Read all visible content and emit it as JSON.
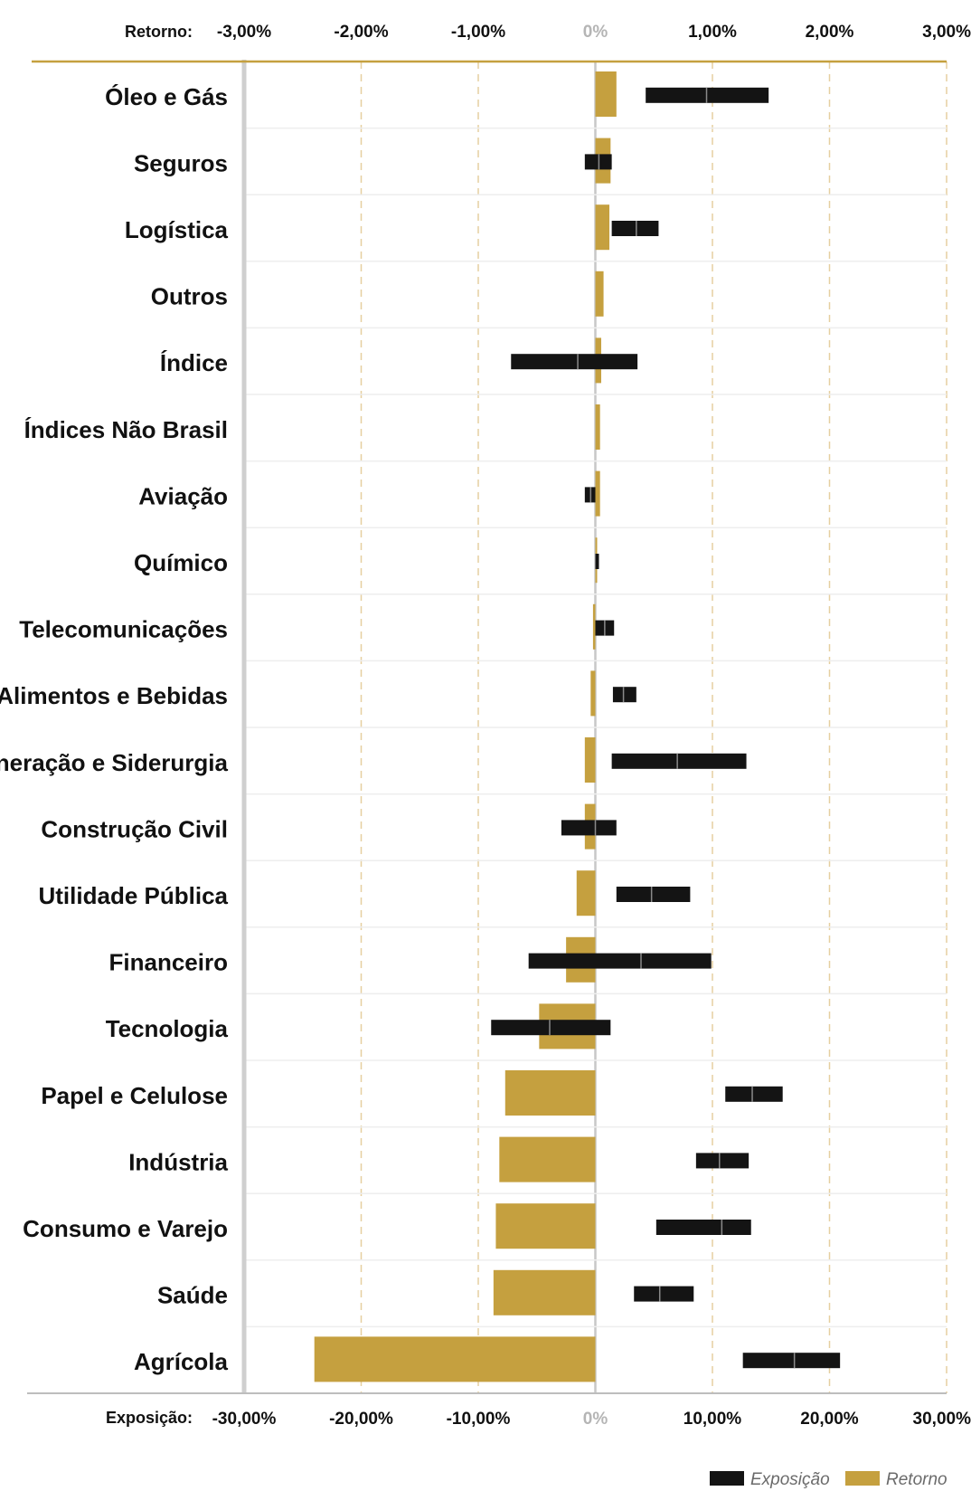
{
  "chart_data": {
    "type": "bar",
    "title": "",
    "categories": [
      "Óleo e Gás",
      "Seguros",
      "Logística",
      "Outros",
      "Índice",
      "Índices Não Brasil",
      "Aviação",
      "Químico",
      "Telecomunicações",
      "Alimentos e Bebidas",
      "Mineração e Siderurgia",
      "Construção Civil",
      "Utilidade Pública",
      "Financeiro",
      "Tecnologia",
      "Papel e Celulose",
      "Indústria",
      "Consumo e Varejo",
      "Saúde",
      "Agrícola"
    ],
    "return_axis": {
      "label": "Retorno:",
      "range": [
        -3,
        3
      ],
      "ticks": [
        -3,
        -2,
        -1,
        0,
        1,
        2,
        3
      ],
      "tick_labels": [
        "-3,00%",
        "-2,00%",
        "-1,00%",
        "0%",
        "1,00%",
        "2,00%",
        "3,00%"
      ]
    },
    "exposure_axis": {
      "label": "Exposição:",
      "range": [
        -30,
        30
      ],
      "ticks": [
        -30,
        -20,
        -10,
        0,
        10,
        20,
        30
      ],
      "tick_labels": [
        "-30,00%",
        "-20,00%",
        "-10,00%",
        "0%",
        "10,00%",
        "20,00%",
        "30,00%"
      ]
    },
    "series": [
      {
        "name": "Retorno",
        "unit": "%",
        "color": "#c5a03f",
        "values": [
          0.18,
          0.13,
          0.12,
          0.07,
          0.05,
          0.04,
          0.04,
          0.0,
          -0.02,
          -0.04,
          -0.09,
          -0.09,
          -0.16,
          -0.25,
          -0.48,
          -0.77,
          -0.82,
          -0.85,
          -0.87,
          -2.4
        ]
      },
      {
        "name": "Exposição",
        "unit": "%",
        "color": "#141414",
        "type": "range",
        "min": [
          4.3,
          -0.9,
          1.4,
          null,
          -7.2,
          null,
          -0.9,
          0.0,
          0.0,
          1.5,
          1.4,
          -2.9,
          1.8,
          -5.7,
          -8.9,
          11.1,
          8.6,
          5.2,
          3.3,
          12.6
        ],
        "max": [
          14.8,
          1.4,
          5.4,
          null,
          3.6,
          null,
          0.0,
          0.3,
          1.6,
          3.5,
          12.9,
          1.8,
          8.1,
          9.9,
          1.3,
          16.0,
          13.1,
          13.3,
          8.4,
          20.9
        ],
        "mean": [
          9.5,
          0.3,
          3.5,
          null,
          -1.5,
          null,
          -0.4,
          0.15,
          0.8,
          2.4,
          7.0,
          0.0,
          4.8,
          3.9,
          -3.9,
          13.4,
          10.6,
          10.8,
          5.5,
          17.0
        ]
      }
    ],
    "legend": {
      "position": "bottom-right",
      "items": [
        {
          "label": "Exposição",
          "color": "#141414"
        },
        {
          "label": "Retorno",
          "color": "#c5a03f"
        }
      ]
    },
    "grid": true
  }
}
